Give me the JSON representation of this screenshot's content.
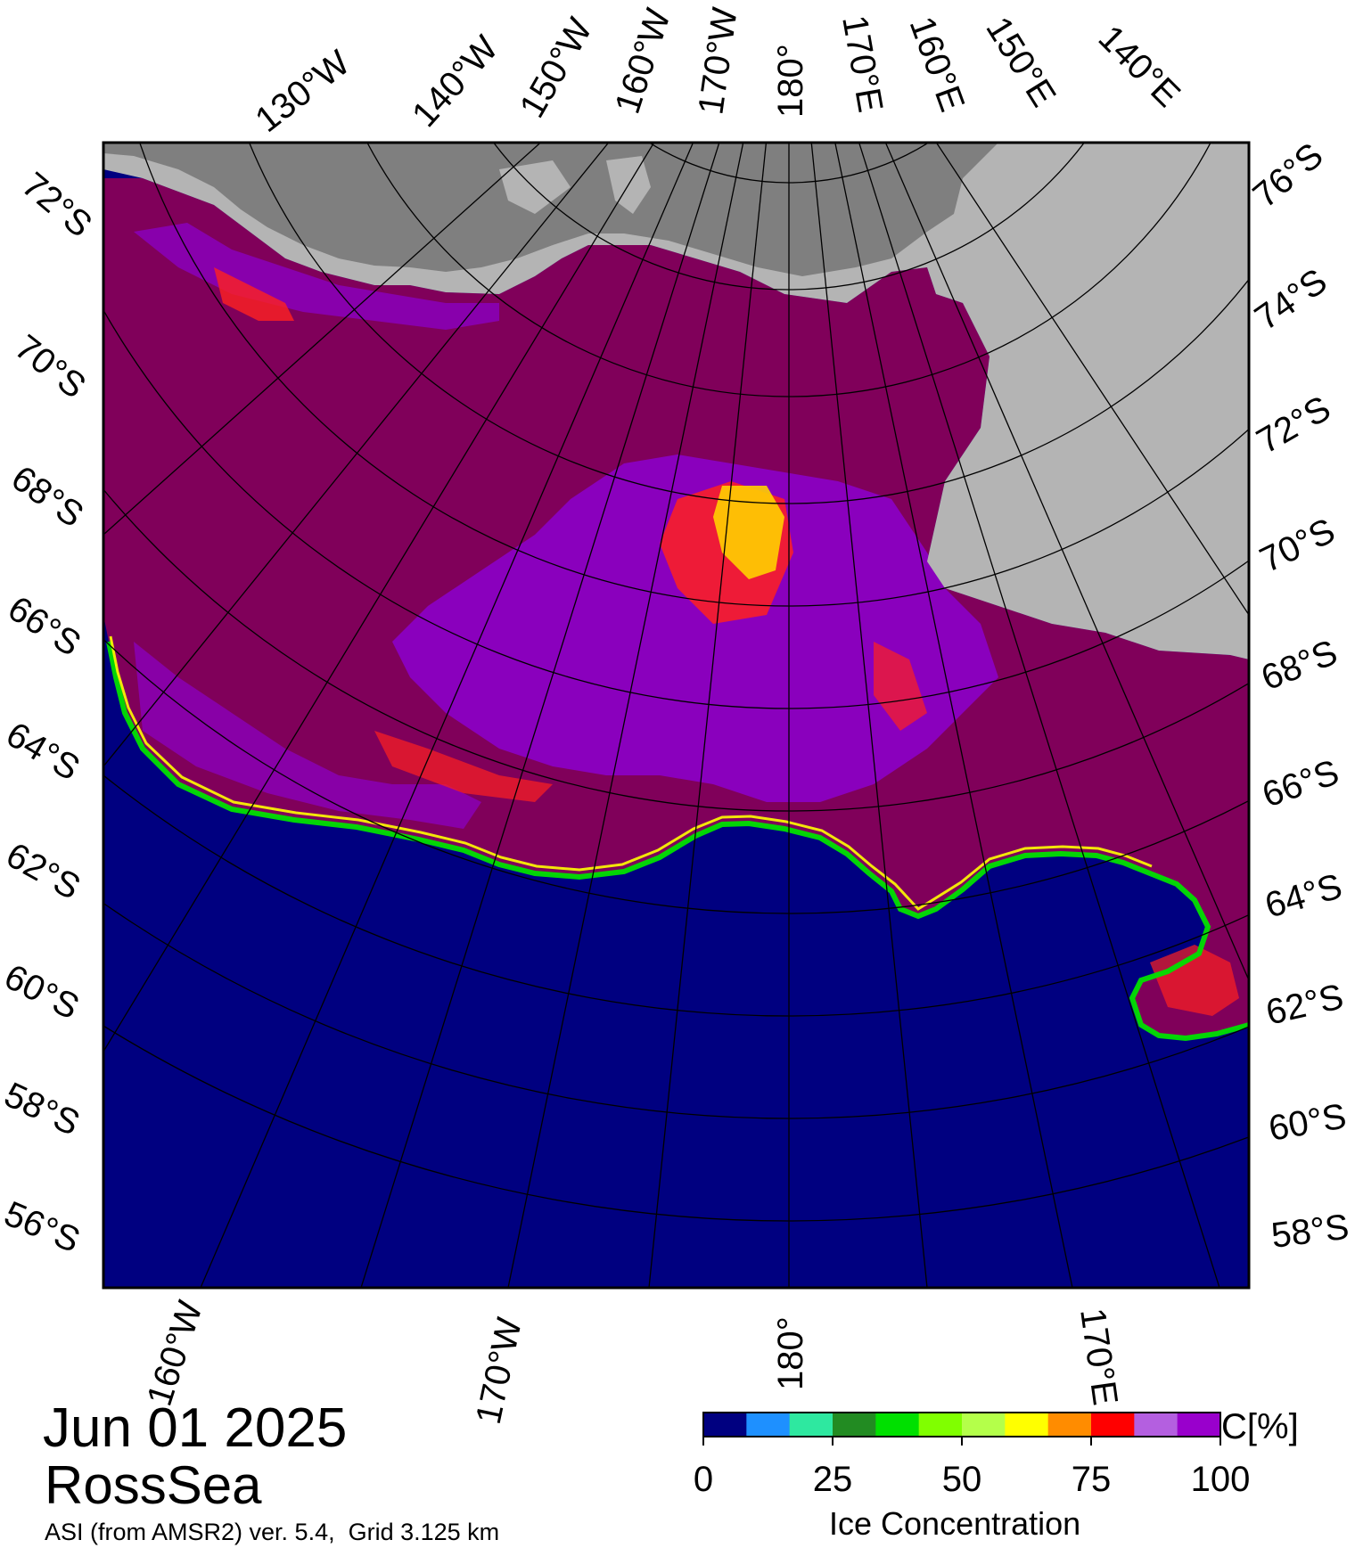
{
  "date": "Jun 01 2025",
  "region": "RossSea",
  "source": "ASI (from AMSR2) ver. 5.4,  Grid 3.125 km",
  "colorbar": {
    "unit": "C[%]",
    "title": "Ice Concentration",
    "ticks": [
      "0",
      "25",
      "50",
      "75",
      "100"
    ],
    "range": [
      0,
      100
    ],
    "colors": [
      "#000080",
      "#1e90ff",
      "#2ee8a0",
      "#228b22",
      "#00e000",
      "#80ff00",
      "#b4ff4a",
      "#ffff00",
      "#ff8c00",
      "#ff0000",
      "#b45fe0",
      "#9900cc"
    ]
  },
  "map_colors": {
    "open_water": "#000080",
    "pack_ice": "#80005a",
    "ice_shelf": "#b4b4b4",
    "land": "#7f7f7f",
    "grid_line": "#000000"
  },
  "graticule": {
    "top_longitude_labels": [
      "130°W",
      "140°W",
      "150°W",
      "160°W",
      "170°W",
      "180°",
      "170°E",
      "160°E",
      "150°E",
      "140°E"
    ],
    "bottom_longitude_labels": [
      "160°W",
      "170°W",
      "180°",
      "170°E"
    ],
    "left_latitude_labels": [
      "72°S",
      "70°S",
      "68°S",
      "66°S",
      "64°S",
      "62°S",
      "60°S",
      "58°S",
      "56°S"
    ],
    "right_latitude_labels": [
      "76°S",
      "74°S",
      "72°S",
      "70°S",
      "68°S",
      "66°S",
      "64°S",
      "62°S",
      "60°S",
      "58°S"
    ]
  }
}
